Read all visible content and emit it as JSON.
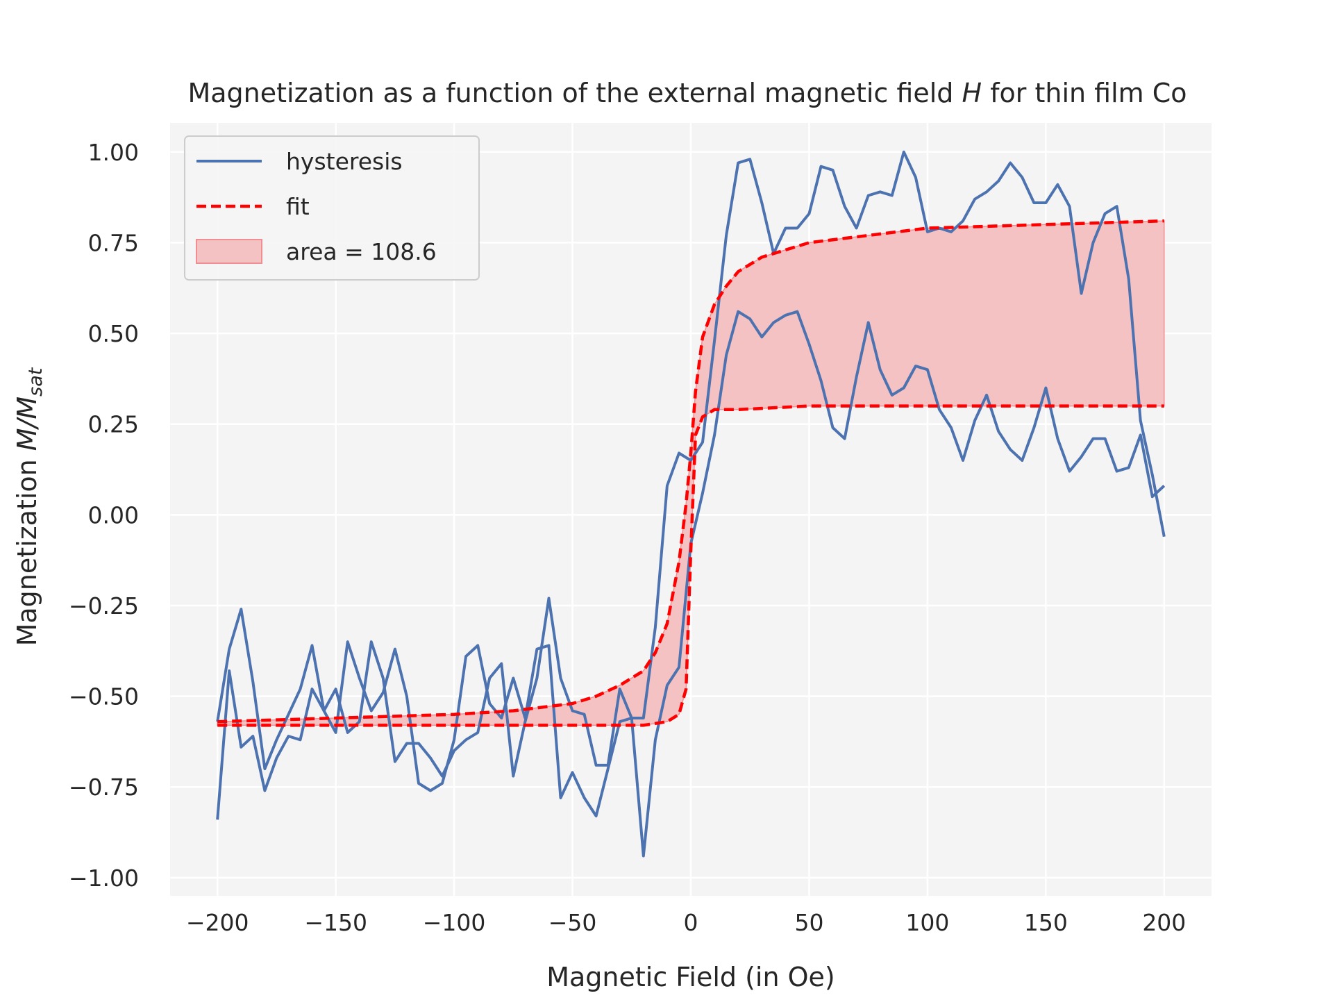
{
  "chart_data": {
    "type": "line",
    "title_main": "Magnetization as a function of the external magnetic field ",
    "title_var": "H",
    "title_tail": " for thin film Co",
    "xlabel": "Magnetic Field (in Oe)",
    "ylabel_main": "Magnetization ",
    "ylabel_math": "M/M",
    "ylabel_sub": "sat",
    "xlim": [
      -220,
      220
    ],
    "ylim": [
      -1.05,
      1.08
    ],
    "xticks": [
      -200,
      -150,
      -100,
      -50,
      0,
      50,
      100,
      150,
      200
    ],
    "xtick_labels": [
      "−200",
      "−150",
      "−100",
      "−50",
      "0",
      "50",
      "100",
      "150",
      "200"
    ],
    "yticks": [
      1.0,
      0.75,
      0.5,
      0.25,
      0.0,
      -0.25,
      -0.5,
      -0.75,
      -1.0
    ],
    "ytick_labels": [
      "1.00",
      "0.75",
      "0.50",
      "0.25",
      "0.00",
      "−0.25",
      "−0.50",
      "−0.75",
      "−1.00"
    ],
    "grid": true,
    "legend_position": "top-left",
    "colors": {
      "background": "#f4f4f4",
      "grid": "#ffffff",
      "hysteresis": "#4c72b0",
      "fit": "#ff0000",
      "fill": "#f5c2c4",
      "fill_edge": "#f08e92"
    },
    "legend": [
      {
        "key": "hysteresis",
        "label": "hysteresis",
        "style": "line"
      },
      {
        "key": "fit",
        "label": "fit",
        "style": "dashed"
      },
      {
        "key": "area",
        "label": "area = 108.6",
        "style": "patch"
      }
    ],
    "series": [
      {
        "name": "hysteresis",
        "branch": "increasing field",
        "x": [
          -200,
          -195,
          -190,
          -185,
          -180,
          -175,
          -170,
          -165,
          -160,
          -155,
          -150,
          -145,
          -140,
          -135,
          -130,
          -125,
          -120,
          -115,
          -110,
          -105,
          -100,
          -95,
          -90,
          -85,
          -80,
          -75,
          -70,
          -65,
          -60,
          -55,
          -50,
          -45,
          -40,
          -35,
          -30,
          -25,
          -20,
          -15,
          -10,
          -5,
          0,
          5,
          10,
          15,
          20,
          25,
          30,
          35,
          40,
          45,
          50,
          55,
          60,
          65,
          70,
          75,
          80,
          85,
          90,
          95,
          100,
          105,
          110,
          115,
          120,
          125,
          130,
          135,
          140,
          145,
          150,
          155,
          160,
          165,
          170,
          175,
          180,
          185,
          190,
          195,
          200
        ],
        "y": [
          -0.84,
          -0.43,
          -0.64,
          -0.61,
          -0.76,
          -0.67,
          -0.61,
          -0.62,
          -0.48,
          -0.54,
          -0.48,
          -0.6,
          -0.57,
          -0.35,
          -0.45,
          -0.68,
          -0.63,
          -0.63,
          -0.67,
          -0.72,
          -0.65,
          -0.62,
          -0.6,
          -0.45,
          -0.41,
          -0.72,
          -0.57,
          -0.45,
          -0.23,
          -0.45,
          -0.54,
          -0.55,
          -0.69,
          -0.69,
          -0.48,
          -0.56,
          -0.94,
          -0.62,
          -0.47,
          -0.42,
          -0.08,
          0.06,
          0.22,
          0.44,
          0.56,
          0.54,
          0.49,
          0.53,
          0.55,
          0.56,
          0.47,
          0.37,
          0.24,
          0.21,
          0.38,
          0.53,
          0.4,
          0.33,
          0.35,
          0.41,
          0.4,
          0.29,
          0.24,
          0.15,
          0.26,
          0.33,
          0.23,
          0.18,
          0.15,
          0.24,
          0.35,
          0.21,
          0.12,
          0.16,
          0.21,
          0.21,
          0.12,
          0.13,
          0.22,
          0.05,
          0.08
        ]
      },
      {
        "name": "hysteresis",
        "branch": "decreasing field",
        "x": [
          200,
          195,
          190,
          185,
          180,
          175,
          170,
          165,
          160,
          155,
          150,
          145,
          140,
          135,
          130,
          125,
          120,
          115,
          110,
          105,
          100,
          95,
          90,
          85,
          80,
          75,
          70,
          65,
          60,
          55,
          50,
          45,
          40,
          35,
          30,
          25,
          20,
          15,
          10,
          5,
          0,
          -5,
          -10,
          -15,
          -20,
          -25,
          -30,
          -35,
          -40,
          -45,
          -50,
          -55,
          -60,
          -65,
          -70,
          -75,
          -80,
          -85,
          -90,
          -95,
          -100,
          -105,
          -110,
          -115,
          -120,
          -125,
          -130,
          -135,
          -140,
          -145,
          -150,
          -155,
          -160,
          -165,
          -170,
          -175,
          -180,
          -185,
          -190,
          -195,
          -200
        ],
        "y": [
          -0.06,
          0.11,
          0.26,
          0.65,
          0.85,
          0.83,
          0.75,
          0.61,
          0.85,
          0.91,
          0.86,
          0.86,
          0.93,
          0.97,
          0.92,
          0.89,
          0.87,
          0.81,
          0.78,
          0.79,
          0.78,
          0.93,
          1.0,
          0.88,
          0.89,
          0.88,
          0.79,
          0.85,
          0.95,
          0.96,
          0.83,
          0.79,
          0.79,
          0.72,
          0.86,
          0.98,
          0.97,
          0.77,
          0.48,
          0.2,
          0.15,
          0.17,
          0.08,
          -0.31,
          -0.56,
          -0.56,
          -0.57,
          -0.7,
          -0.83,
          -0.78,
          -0.71,
          -0.78,
          -0.36,
          -0.37,
          -0.56,
          -0.45,
          -0.56,
          -0.52,
          -0.36,
          -0.39,
          -0.62,
          -0.74,
          -0.76,
          -0.74,
          -0.5,
          -0.37,
          -0.49,
          -0.54,
          -0.45,
          -0.35,
          -0.6,
          -0.54,
          -0.36,
          -0.48,
          -0.55,
          -0.62,
          -0.7,
          -0.46,
          -0.26,
          -0.37,
          -0.57
        ]
      }
    ],
    "fit": {
      "name": "fit",
      "upper_branch": {
        "x": [
          -200,
          -150,
          -100,
          -75,
          -50,
          -40,
          -30,
          -20,
          -15,
          -10,
          -5,
          -2,
          0,
          2,
          5,
          10,
          15,
          20,
          25,
          30,
          40,
          50,
          75,
          100,
          150,
          200
        ],
        "y": [
          -0.57,
          -0.56,
          -0.55,
          -0.54,
          -0.52,
          -0.5,
          -0.47,
          -0.43,
          -0.38,
          -0.3,
          -0.13,
          0.03,
          0.17,
          0.34,
          0.49,
          0.58,
          0.63,
          0.67,
          0.69,
          0.71,
          0.73,
          0.75,
          0.77,
          0.79,
          0.8,
          0.81
        ]
      },
      "lower_branch": {
        "x": [
          -200,
          -150,
          -100,
          -50,
          -20,
          -10,
          -5,
          -2,
          0,
          2,
          5,
          10,
          20,
          50,
          100,
          150,
          200
        ],
        "y": [
          -0.58,
          -0.58,
          -0.58,
          -0.58,
          -0.58,
          -0.57,
          -0.55,
          -0.48,
          -0.1,
          0.22,
          0.27,
          0.29,
          0.29,
          0.3,
          0.3,
          0.3,
          0.3
        ]
      },
      "area": 108.6
    }
  }
}
